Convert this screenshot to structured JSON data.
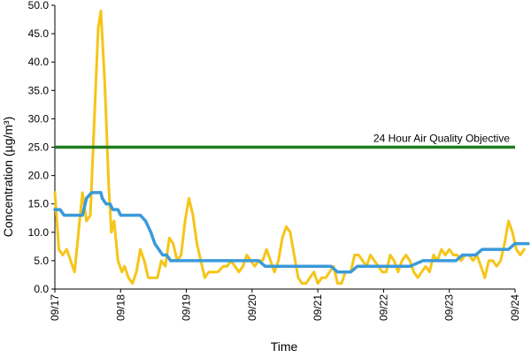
{
  "chart_data": {
    "type": "line",
    "xlabel": "Time",
    "ylabel": "Concentration (µg/m³)",
    "ylim": [
      0,
      50
    ],
    "xlim": [
      0,
      7
    ],
    "y_ticks": [
      "0.0",
      "5.0",
      "10.0",
      "15.0",
      "20.0",
      "25.0",
      "30.0",
      "35.0",
      "40.0",
      "45.0",
      "50.0"
    ],
    "x_ticks": [
      "09/17",
      "09/18",
      "09/19",
      "09/20",
      "09/21",
      "09/22",
      "09/23",
      "09/24"
    ],
    "grid": false,
    "annotation": {
      "label": "24 Hour Air Quality Objective",
      "y": 25,
      "color": "#1e7d1e"
    },
    "series": [
      {
        "color": "#f5c518",
        "points": [
          [
            0.0,
            17
          ],
          [
            0.06,
            7
          ],
          [
            0.12,
            6
          ],
          [
            0.18,
            7
          ],
          [
            0.24,
            5
          ],
          [
            0.3,
            3
          ],
          [
            0.36,
            10
          ],
          [
            0.42,
            17
          ],
          [
            0.48,
            12
          ],
          [
            0.54,
            13
          ],
          [
            0.6,
            30
          ],
          [
            0.66,
            46
          ],
          [
            0.7,
            49
          ],
          [
            0.76,
            36
          ],
          [
            0.82,
            18
          ],
          [
            0.86,
            10
          ],
          [
            0.9,
            12
          ],
          [
            0.96,
            5
          ],
          [
            1.02,
            3
          ],
          [
            1.06,
            4
          ],
          [
            1.12,
            2
          ],
          [
            1.18,
            1
          ],
          [
            1.24,
            3
          ],
          [
            1.3,
            7
          ],
          [
            1.36,
            5
          ],
          [
            1.42,
            2
          ],
          [
            1.5,
            2
          ],
          [
            1.56,
            2
          ],
          [
            1.62,
            5
          ],
          [
            1.68,
            4
          ],
          [
            1.74,
            9
          ],
          [
            1.8,
            8
          ],
          [
            1.86,
            5
          ],
          [
            1.92,
            6
          ],
          [
            1.98,
            12
          ],
          [
            2.04,
            16
          ],
          [
            2.1,
            13
          ],
          [
            2.16,
            8
          ],
          [
            2.22,
            5
          ],
          [
            2.28,
            2
          ],
          [
            2.34,
            3
          ],
          [
            2.4,
            3
          ],
          [
            2.48,
            3
          ],
          [
            2.56,
            4
          ],
          [
            2.62,
            4
          ],
          [
            2.68,
            5
          ],
          [
            2.74,
            4
          ],
          [
            2.8,
            3
          ],
          [
            2.86,
            4
          ],
          [
            2.92,
            6
          ],
          [
            2.98,
            5
          ],
          [
            3.04,
            4
          ],
          [
            3.1,
            5
          ],
          [
            3.16,
            5
          ],
          [
            3.22,
            7
          ],
          [
            3.28,
            5
          ],
          [
            3.34,
            3
          ],
          [
            3.4,
            5
          ],
          [
            3.46,
            9
          ],
          [
            3.52,
            11
          ],
          [
            3.58,
            10
          ],
          [
            3.64,
            6
          ],
          [
            3.7,
            2
          ],
          [
            3.76,
            1
          ],
          [
            3.82,
            1
          ],
          [
            3.88,
            2
          ],
          [
            3.94,
            3
          ],
          [
            4.0,
            1
          ],
          [
            4.06,
            2
          ],
          [
            4.12,
            2
          ],
          [
            4.18,
            3
          ],
          [
            4.24,
            4
          ],
          [
            4.3,
            1
          ],
          [
            4.36,
            1
          ],
          [
            4.42,
            3
          ],
          [
            4.5,
            3
          ],
          [
            4.56,
            6
          ],
          [
            4.62,
            6
          ],
          [
            4.68,
            5
          ],
          [
            4.74,
            4
          ],
          [
            4.8,
            6
          ],
          [
            4.86,
            5
          ],
          [
            4.92,
            4
          ],
          [
            4.98,
            3
          ],
          [
            5.04,
            3
          ],
          [
            5.1,
            6
          ],
          [
            5.16,
            5
          ],
          [
            5.22,
            3
          ],
          [
            5.28,
            5
          ],
          [
            5.34,
            6
          ],
          [
            5.4,
            5
          ],
          [
            5.46,
            3
          ],
          [
            5.52,
            2
          ],
          [
            5.58,
            3
          ],
          [
            5.64,
            4
          ],
          [
            5.7,
            3
          ],
          [
            5.76,
            6
          ],
          [
            5.82,
            5
          ],
          [
            5.88,
            7
          ],
          [
            5.94,
            6
          ],
          [
            6.0,
            7
          ],
          [
            6.06,
            6
          ],
          [
            6.12,
            6
          ],
          [
            6.18,
            5
          ],
          [
            6.24,
            6
          ],
          [
            6.3,
            6
          ],
          [
            6.36,
            5
          ],
          [
            6.42,
            6
          ],
          [
            6.48,
            4
          ],
          [
            6.54,
            2
          ],
          [
            6.6,
            5
          ],
          [
            6.66,
            5
          ],
          [
            6.72,
            4
          ],
          [
            6.78,
            5
          ],
          [
            6.84,
            8
          ],
          [
            6.9,
            12
          ],
          [
            6.96,
            10
          ],
          [
            7.02,
            7
          ],
          [
            7.08,
            6
          ],
          [
            7.14,
            7
          ]
        ]
      },
      {
        "color": "#3a9ad9",
        "points": [
          [
            0.0,
            14
          ],
          [
            0.08,
            14
          ],
          [
            0.14,
            13
          ],
          [
            0.3,
            13
          ],
          [
            0.42,
            13
          ],
          [
            0.48,
            16
          ],
          [
            0.56,
            17
          ],
          [
            0.64,
            17
          ],
          [
            0.7,
            17
          ],
          [
            0.72,
            16
          ],
          [
            0.78,
            15
          ],
          [
            0.84,
            15
          ],
          [
            0.88,
            14
          ],
          [
            0.96,
            14
          ],
          [
            1.0,
            13
          ],
          [
            1.1,
            13
          ],
          [
            1.2,
            13
          ],
          [
            1.3,
            13
          ],
          [
            1.38,
            12
          ],
          [
            1.46,
            10
          ],
          [
            1.52,
            8
          ],
          [
            1.58,
            7
          ],
          [
            1.64,
            6
          ],
          [
            1.7,
            6
          ],
          [
            1.76,
            5
          ],
          [
            1.9,
            5
          ],
          [
            2.1,
            5
          ],
          [
            2.3,
            5
          ],
          [
            2.5,
            5
          ],
          [
            2.7,
            5
          ],
          [
            2.9,
            5
          ],
          [
            3.1,
            5
          ],
          [
            3.2,
            4
          ],
          [
            3.4,
            4
          ],
          [
            3.6,
            4
          ],
          [
            3.8,
            4
          ],
          [
            4.0,
            4
          ],
          [
            4.2,
            4
          ],
          [
            4.3,
            3
          ],
          [
            4.5,
            3
          ],
          [
            4.6,
            4
          ],
          [
            4.8,
            4
          ],
          [
            5.0,
            4
          ],
          [
            5.2,
            4
          ],
          [
            5.4,
            4
          ],
          [
            5.6,
            5
          ],
          [
            5.8,
            5
          ],
          [
            6.0,
            5
          ],
          [
            6.1,
            5
          ],
          [
            6.2,
            6
          ],
          [
            6.4,
            6
          ],
          [
            6.5,
            7
          ],
          [
            6.7,
            7
          ],
          [
            6.9,
            7
          ],
          [
            7.0,
            8
          ],
          [
            7.2,
            8
          ]
        ]
      }
    ]
  }
}
